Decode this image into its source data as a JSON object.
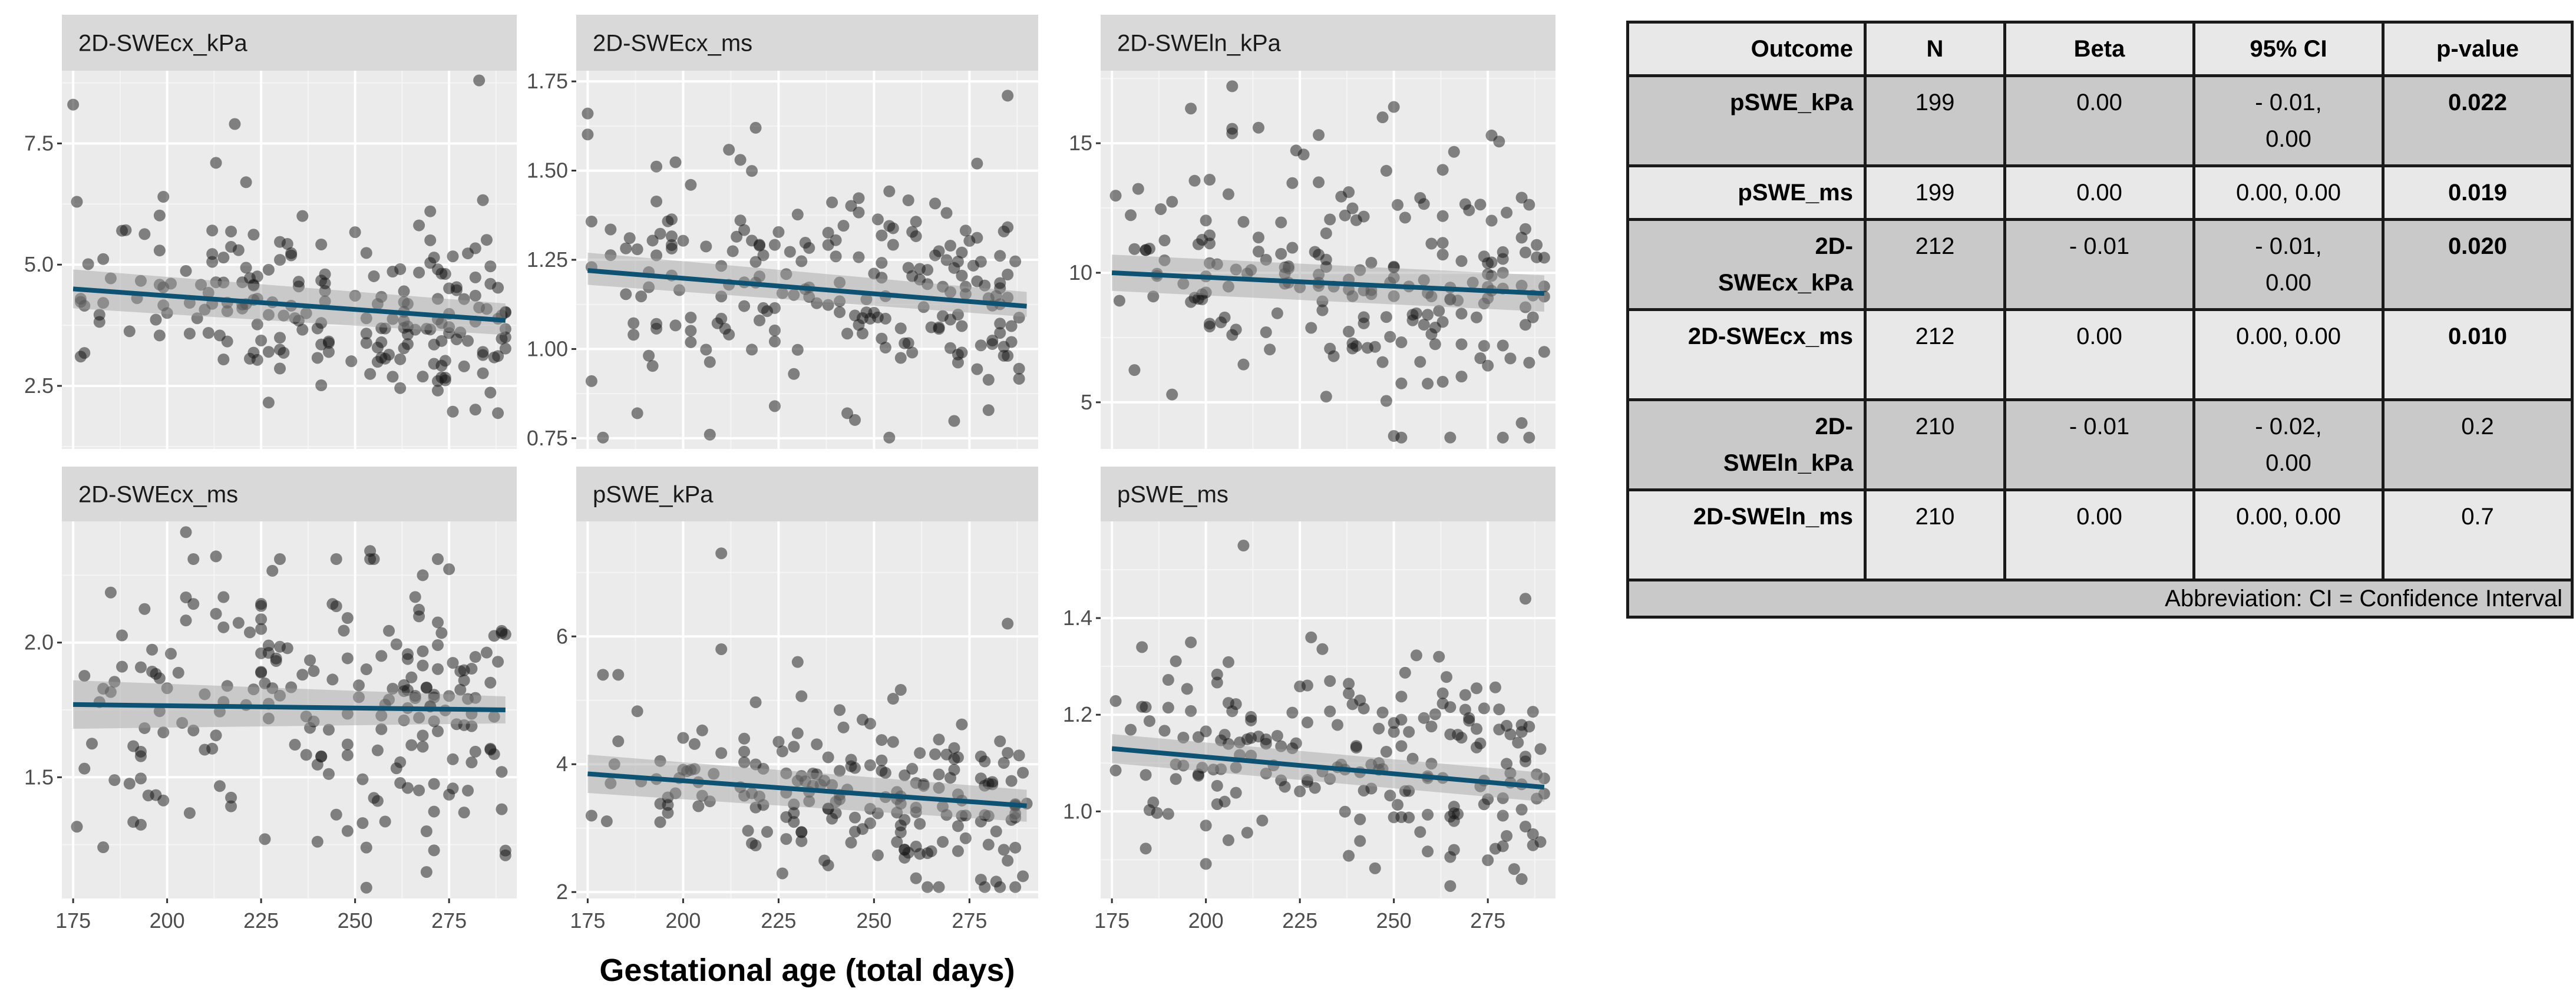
{
  "chart_data": {
    "type": "scatter",
    "xlabel": "Gestational age (total days)",
    "xlim": [
      172,
      293
    ],
    "xticks": [
      175,
      200,
      225,
      250,
      275
    ],
    "panels": [
      {
        "title": "2D-SWEcx_kPa",
        "ylim": [
          1.2,
          9.0
        ],
        "yticks": [
          2.5,
          5.0,
          7.5
        ],
        "ytick_labels": [
          "2.5",
          "5.0",
          "7.5"
        ],
        "trend": {
          "x": [
            175,
            290
          ],
          "y": [
            4.5,
            3.85
          ]
        },
        "band": {
          "lower": [
            4.1,
            3.55
          ],
          "upper": [
            4.9,
            4.2
          ]
        },
        "n_points": 212,
        "y_center": 4.2,
        "y_spread": 0.85,
        "points": [
          [
            175,
            8.3
          ],
          [
            283,
            8.8
          ],
          [
            218,
            7.9
          ],
          [
            213,
            7.1
          ],
          [
            221,
            6.7
          ],
          [
            199,
            6.4
          ],
          [
            270,
            6.1
          ]
        ]
      },
      {
        "title": "2D-SWEcx_ms",
        "ylim": [
          0.72,
          1.78
        ],
        "yticks": [
          0.75,
          1.0,
          1.25,
          1.5,
          1.75
        ],
        "ytick_labels": [
          "0.75",
          "1.00",
          "1.25",
          "1.50",
          "1.75"
        ],
        "trend": {
          "x": [
            175,
            290
          ],
          "y": [
            1.22,
            1.12
          ]
        },
        "band": {
          "lower": [
            1.18,
            1.09
          ],
          "upper": [
            1.27,
            1.16
          ]
        },
        "n_points": 212,
        "y_center": 1.15,
        "y_spread": 0.14,
        "points": [
          [
            175,
            1.66
          ],
          [
            285,
            1.71
          ],
          [
            219,
            1.62
          ],
          [
            215,
            1.53
          ],
          [
            202,
            1.46
          ],
          [
            176,
            0.91
          ],
          [
            188,
            0.82
          ],
          [
            207,
            0.76
          ]
        ]
      },
      {
        "title": "2D-SWEln_kPa",
        "ylim": [
          3.2,
          17.8
        ],
        "yticks": [
          5,
          10,
          15
        ],
        "ytick_labels": [
          "5",
          "10",
          "15"
        ],
        "trend": {
          "x": [
            175,
            290
          ],
          "y": [
            10.0,
            9.2
          ]
        },
        "band": {
          "lower": [
            9.3,
            8.5
          ],
          "upper": [
            10.7,
            9.9
          ]
        },
        "n_points": 210,
        "y_center": 9.4,
        "y_spread": 2.4,
        "points": [
          [
            207,
            17.2
          ],
          [
            250,
            16.4
          ],
          [
            247,
            16.0
          ],
          [
            214,
            15.6
          ],
          [
            276,
            15.3
          ],
          [
            250,
            3.7
          ],
          [
            284,
            4.2
          ]
        ]
      },
      {
        "title": "2D-SWEcx_ms",
        "ylim": [
          1.05,
          2.45
        ],
        "yticks": [
          1.5,
          2.0
        ],
        "ytick_labels": [
          "1.5",
          "2.0"
        ],
        "trend": {
          "x": [
            175,
            290
          ],
          "y": [
            1.77,
            1.75
          ]
        },
        "band": {
          "lower": [
            1.68,
            1.7
          ],
          "upper": [
            1.86,
            1.8
          ]
        },
        "n_points": 212,
        "y_center": 1.75,
        "y_spread": 0.25,
        "points": [
          [
            205,
            2.41
          ],
          [
            213,
            2.32
          ],
          [
            254,
            2.34
          ],
          [
            268,
            2.25
          ],
          [
            183,
            1.24
          ],
          [
            253,
            1.09
          ],
          [
            290,
            1.21
          ]
        ]
      },
      {
        "title": "pSWE_kPa",
        "ylim": [
          1.9,
          7.8
        ],
        "yticks": [
          2,
          4,
          6
        ],
        "ytick_labels": [
          "2",
          "4",
          "6"
        ],
        "trend": {
          "x": [
            175,
            290
          ],
          "y": [
            3.85,
            3.35
          ]
        },
        "band": {
          "lower": [
            3.55,
            3.1
          ],
          "upper": [
            4.15,
            3.6
          ]
        },
        "n_points": 199,
        "y_center": 3.5,
        "y_spread": 0.7,
        "points": [
          [
            210,
            7.3
          ],
          [
            285,
            6.2
          ],
          [
            179,
            5.4
          ],
          [
            183,
            5.4
          ],
          [
            230,
            5.6
          ],
          [
            210,
            5.8
          ]
        ]
      },
      {
        "title": "pSWE_ms",
        "ylim": [
          0.82,
          1.6
        ],
        "yticks": [
          1.0,
          1.2,
          1.4
        ],
        "ytick_labels": [
          "1.0",
          "1.2",
          "1.4"
        ],
        "trend": {
          "x": [
            175,
            290
          ],
          "y": [
            1.13,
            1.05
          ]
        },
        "band": {
          "lower": [
            1.1,
            1.02
          ],
          "upper": [
            1.16,
            1.08
          ]
        },
        "n_points": 199,
        "y_center": 1.07,
        "y_spread": 0.11,
        "points": [
          [
            210,
            1.55
          ],
          [
            285,
            1.44
          ],
          [
            183,
            1.34
          ],
          [
            228,
            1.36
          ],
          [
            284,
            0.86
          ]
        ]
      }
    ]
  },
  "table": {
    "headers": [
      "Outcome",
      "N",
      "Beta",
      "95% CI",
      "p-value"
    ],
    "rows": [
      {
        "outcome": "pSWE_kPa",
        "n": "199",
        "beta": "0.00",
        "ci1": "- 0.01,",
        "ci2": "0.00",
        "p": "0.022",
        "p_bold": true
      },
      {
        "outcome": "pSWE_ms",
        "n": "199",
        "beta": "0.00",
        "ci1": "0.00, 0.00",
        "ci2": "",
        "p": "0.019",
        "p_bold": true
      },
      {
        "outcome1": "2D-",
        "outcome2": "SWEcx_kPa",
        "n": "212",
        "beta": "- 0.01",
        "ci1": "- 0.01,",
        "ci2": "0.00",
        "p": "0.020",
        "p_bold": true
      },
      {
        "outcome": "2D-SWEcx_ms",
        "n": "212",
        "beta": "0.00",
        "ci1": "0.00, 0.00",
        "ci2": "",
        "p": "0.010",
        "p_bold": true
      },
      {
        "outcome1": "2D-",
        "outcome2": "SWEln_kPa",
        "n": "210",
        "beta": "- 0.01",
        "ci1": "- 0.02,",
        "ci2": "0.00",
        "p": "0.2",
        "p_bold": false
      },
      {
        "outcome": "2D-SWEln_ms",
        "n": "210",
        "beta": "0.00",
        "ci1": "0.00, 0.00",
        "ci2": "",
        "p": "0.7",
        "p_bold": false
      }
    ],
    "footer": "Abbreviation: CI = Confidence Interval"
  }
}
